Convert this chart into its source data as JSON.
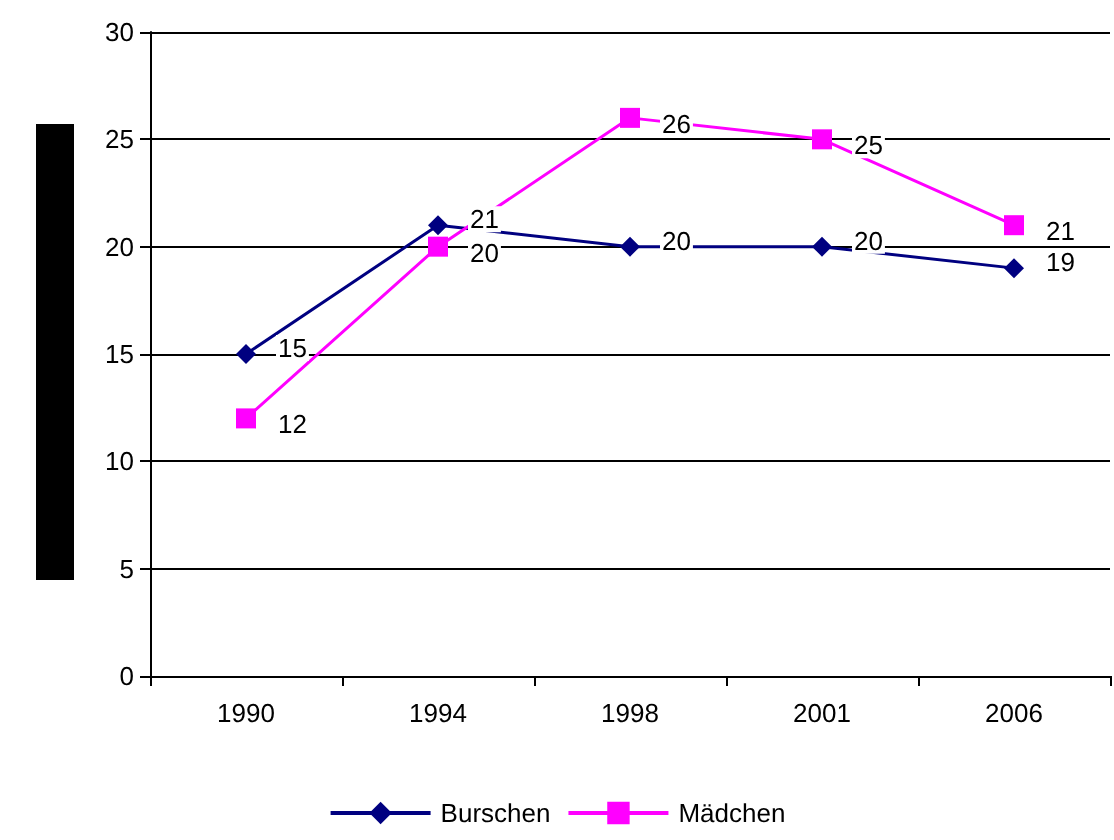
{
  "chart_data": {
    "type": "line",
    "categories": [
      "1990",
      "1994",
      "1998",
      "2001",
      "2006"
    ],
    "series": [
      {
        "name": "Burschen",
        "color": "#000080",
        "values": [
          15,
          21,
          20,
          20,
          19
        ],
        "marker": "diamond"
      },
      {
        "name": "Mädchen",
        "color": "#ff00ff",
        "values": [
          12,
          20,
          26,
          25,
          21
        ],
        "marker": "square"
      }
    ],
    "ylim": [
      0,
      30
    ],
    "yticks": [
      0,
      5,
      10,
      15,
      20,
      25,
      30
    ],
    "grid": "y",
    "legend": "bottom",
    "data_labels": true
  }
}
